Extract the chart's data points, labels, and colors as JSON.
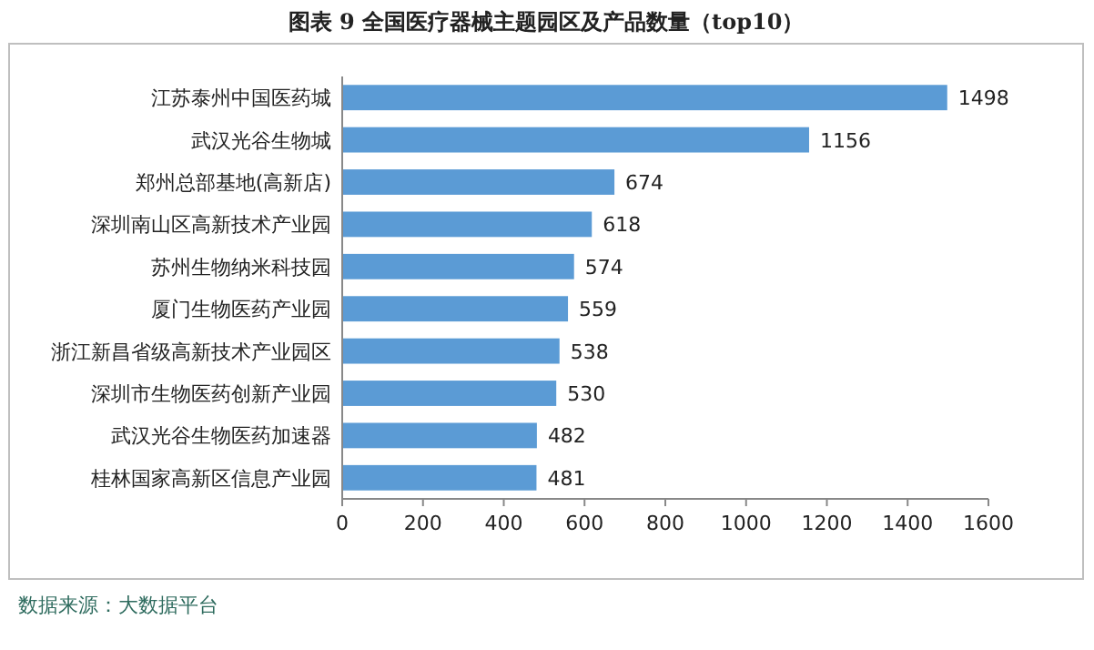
{
  "chart_data": {
    "type": "bar",
    "orientation": "horizontal",
    "title": "图表 9 全国医疗器械主题园区及产品数量（top10）",
    "categories": [
      "江苏泰州中国医药城",
      "武汉光谷生物城",
      "郑州总部基地(高新店)",
      "深圳南山区高新技术产业园",
      "苏州生物纳米科技园",
      "厦门生物医药产业园",
      "浙江新昌省级高新技术产业园区",
      "深圳市生物医药创新产业园",
      "武汉光谷生物医药加速器",
      "桂林国家高新区信息产业园"
    ],
    "values": [
      1498,
      1156,
      674,
      618,
      574,
      559,
      538,
      530,
      482,
      481
    ],
    "color": "#5b9bd5",
    "data_labels": true,
    "xlim": [
      0,
      1600
    ],
    "xticks": [
      0,
      200,
      400,
      600,
      800,
      1000,
      1200,
      1400,
      1600
    ],
    "annotations": [
      "数据来源：大数据平台"
    ]
  }
}
